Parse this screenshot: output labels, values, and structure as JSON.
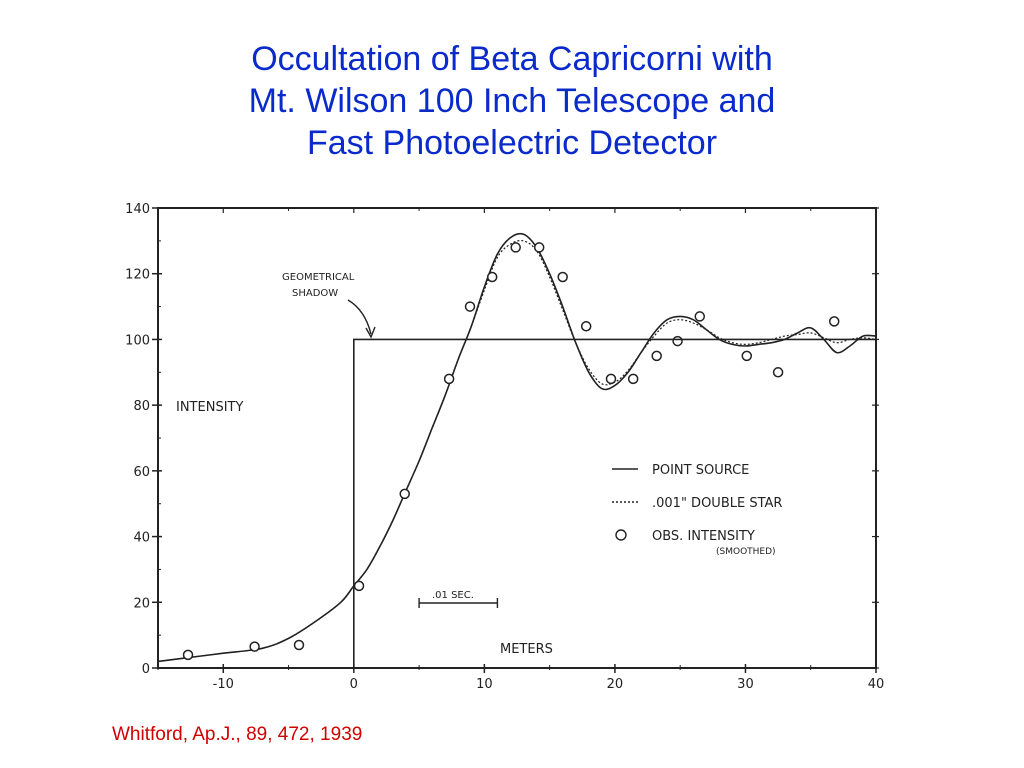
{
  "title_lines": [
    "Occultation of Beta Capricorni with",
    "Mt. Wilson 100 Inch Telescope and",
    "Fast Photoelectric Detector"
  ],
  "citation": "Whitford, Ap.J., 89, 472, 1939",
  "colors": {
    "title": "#0a2acc",
    "citation": "#d00000",
    "ink": "#222222"
  },
  "chart_data": {
    "type": "line",
    "xlabel": "METERS",
    "ylabel": "INTENSITY",
    "xlim": [
      -15,
      40
    ],
    "ylim": [
      0,
      140
    ],
    "x_ticks": [
      -10,
      0,
      10,
      20,
      30,
      40
    ],
    "x_tick_labels": [
      "-10",
      "0",
      "10",
      "20",
      "30",
      "40"
    ],
    "y_ticks": [
      0,
      20,
      40,
      60,
      80,
      100,
      120,
      140
    ],
    "y_tick_labels": [
      "0",
      "20",
      "40",
      "60",
      "80",
      "100",
      "120",
      "140"
    ],
    "grid": false,
    "legend_position": "center-right",
    "annotations": {
      "shadow_label": [
        "GEOMETRICAL",
        "SHADOW"
      ],
      "time_scale_label": ".01 SEC.",
      "time_scale_x": [
        5,
        11
      ]
    },
    "series": [
      {
        "name": "POINT SOURCE",
        "style": "solid",
        "x": [
          -15,
          -12,
          -10,
          -7,
          -5,
          -3,
          -1,
          0,
          1,
          2,
          3,
          4,
          5,
          6,
          7,
          8,
          9,
          10,
          11,
          12,
          13,
          14,
          15,
          16,
          17,
          18,
          19,
          20,
          21,
          22,
          23,
          24,
          25,
          26,
          27,
          28,
          29,
          30,
          31,
          32,
          33,
          34,
          35,
          36,
          37,
          38,
          39,
          40
        ],
        "y": [
          2,
          3.5,
          4.5,
          6,
          9,
          14,
          20,
          25,
          30,
          37,
          45,
          54,
          63,
          73,
          83,
          94,
          104,
          116,
          126,
          131,
          132,
          128,
          120,
          110,
          99,
          90,
          85,
          86,
          90,
          96,
          102,
          106,
          107,
          106,
          103,
          100,
          98.5,
          98,
          98.5,
          99,
          100,
          102,
          103.5,
          100,
          96,
          98,
          101,
          101
        ]
      },
      {
        "name": ".001\" DOUBLE STAR",
        "style": "dotted",
        "x": [
          -15,
          -12,
          -10,
          -7,
          -5,
          -3,
          -1,
          0,
          1,
          2,
          3,
          4,
          5,
          6,
          7,
          8,
          9,
          10,
          11,
          12,
          13,
          14,
          15,
          16,
          17,
          18,
          19,
          20,
          21,
          22,
          23,
          24,
          25,
          26,
          27,
          28,
          29,
          30,
          31,
          32,
          33,
          34,
          35,
          36,
          37,
          38,
          39,
          40
        ],
        "y": [
          2,
          3.5,
          4.5,
          6,
          9,
          14,
          20,
          25,
          30,
          37,
          45,
          54,
          63,
          73,
          83,
          94,
          104,
          115,
          125,
          129,
          130,
          127,
          119,
          109,
          99,
          91,
          86.5,
          87,
          90.5,
          96,
          101,
          105,
          106,
          105,
          103,
          100.5,
          99,
          98.5,
          99,
          100,
          101,
          101.5,
          102,
          100.5,
          99,
          100,
          100.5,
          100
        ]
      },
      {
        "name": "OBS. INTENSITY",
        "sublabel": "(SMOOTHED)",
        "style": "markers",
        "x": [
          -12.7,
          -7.6,
          -4.2,
          0.4,
          3.9,
          7.3,
          8.9,
          10.6,
          12.4,
          14.2,
          16.0,
          17.8,
          19.7,
          21.4,
          23.2,
          24.8,
          26.5,
          30.1,
          32.5,
          36.8
        ],
        "y": [
          4,
          6.5,
          7,
          25,
          53,
          88,
          110,
          119,
          128,
          128,
          119,
          104,
          88,
          88,
          95,
          99.5,
          107,
          95,
          90,
          105.5
        ]
      },
      {
        "name": "GEOMETRICAL SHADOW",
        "style": "step",
        "x": [
          -15,
          0,
          0,
          40
        ],
        "y": [
          0,
          0,
          100,
          100
        ]
      }
    ]
  }
}
